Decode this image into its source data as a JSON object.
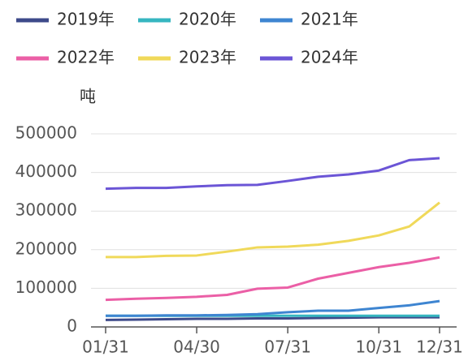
{
  "chart_data": {
    "type": "line",
    "y_label": "吨",
    "categories": [
      "01/31",
      null,
      null,
      "04/30",
      null,
      null,
      "07/31",
      null,
      null,
      "10/31",
      null,
      "12/31"
    ],
    "series": [
      {
        "name": "2019年",
        "color": "#3d4a8a",
        "values": [
          18000,
          19000,
          20000,
          21000,
          21000,
          22000,
          22000,
          23000,
          24000,
          25000,
          25000,
          25000
        ]
      },
      {
        "name": "2020年",
        "color": "#36b6c0",
        "values": [
          29000,
          29000,
          29000,
          29000,
          29000,
          29000,
          29000,
          29000,
          29000,
          29000,
          29000,
          29000
        ]
      },
      {
        "name": "2021年",
        "color": "#3e85d1",
        "values": [
          29000,
          29000,
          30000,
          30000,
          31000,
          33000,
          38000,
          42000,
          42000,
          49000,
          56000,
          67000
        ]
      },
      {
        "name": "2022年",
        "color": "#eb5fa6",
        "values": [
          70000,
          73000,
          75000,
          78000,
          83000,
          99000,
          102000,
          125000,
          140000,
          155000,
          166000,
          180000
        ]
      },
      {
        "name": "2023年",
        "color": "#f0d95a",
        "values": [
          181000,
          181000,
          184000,
          185000,
          195000,
          206000,
          208000,
          213000,
          223000,
          237000,
          260000,
          322000
        ]
      },
      {
        "name": "2024年",
        "color": "#6b55d6",
        "values": [
          358000,
          360000,
          360000,
          364000,
          367000,
          368000,
          378000,
          389000,
          395000,
          405000,
          432000,
          437000
        ]
      }
    ],
    "ylim": [
      0,
      500000
    ],
    "yticks": [
      0,
      100000,
      200000,
      300000,
      400000,
      500000
    ],
    "grid": true
  }
}
